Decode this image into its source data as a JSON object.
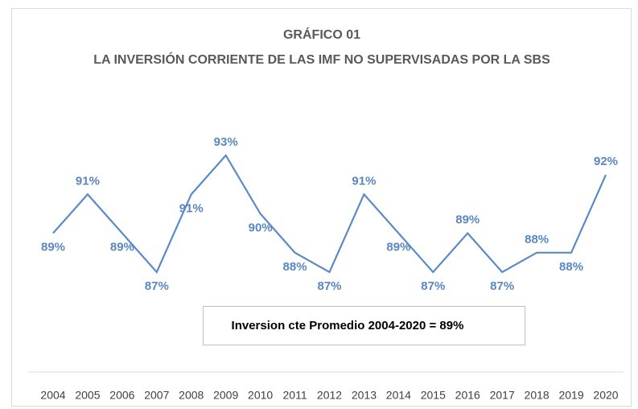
{
  "chart_data": {
    "type": "line",
    "title": "GRÁFICO 01",
    "subtitle": "LA INVERSIÓN CORRIENTE DE LAS IMF NO SUPERVISADAS POR LA SBS",
    "annotation": "Inversion cte Promedio 2004-2020 = 89%",
    "categories": [
      "2004",
      "2005",
      "2006",
      "2007",
      "2008",
      "2009",
      "2010",
      "2011",
      "2012",
      "2013",
      "2014",
      "2015",
      "2016",
      "2017",
      "2018",
      "2019",
      "2020"
    ],
    "series": [
      {
        "name": "Inversión corriente",
        "color": "#5b8bc7",
        "values": [
          89,
          91,
          89,
          87,
          91,
          93,
          90,
          88,
          87,
          91,
          89,
          87,
          89,
          87,
          88,
          88,
          92
        ],
        "value_labels": [
          "89%",
          "91%",
          "89%",
          "87%",
          "91%",
          "93%",
          "90%",
          "88%",
          "87%",
          "91%",
          "89%",
          "87%",
          "89%",
          "87%",
          "88%",
          "88%",
          "92%"
        ]
      }
    ],
    "grid": false,
    "legend": false
  }
}
